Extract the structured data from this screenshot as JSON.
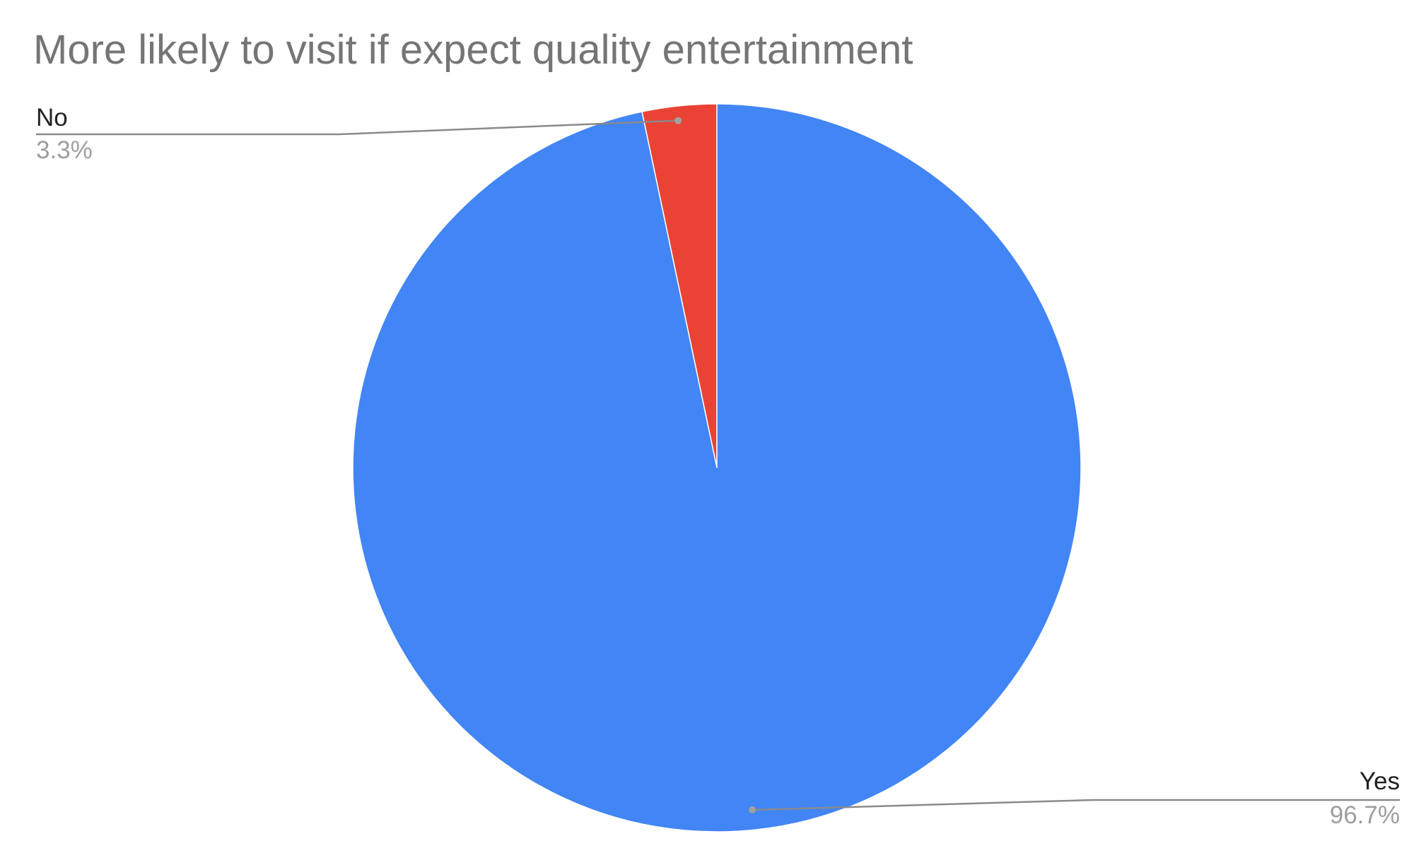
{
  "chart_data": {
    "type": "pie",
    "title": "More likely to visit if expect quality entertainment",
    "slices": [
      {
        "label": "No",
        "value": 3.3,
        "percent_label": "3.3%",
        "color": "#ea4335"
      },
      {
        "label": "Yes",
        "value": 96.7,
        "percent_label": "96.7%",
        "color": "#4285f4"
      }
    ],
    "start_angle_deg": 0,
    "direction": "counterclockwise",
    "legend": "none",
    "slice_text": "labels with leader lines"
  }
}
